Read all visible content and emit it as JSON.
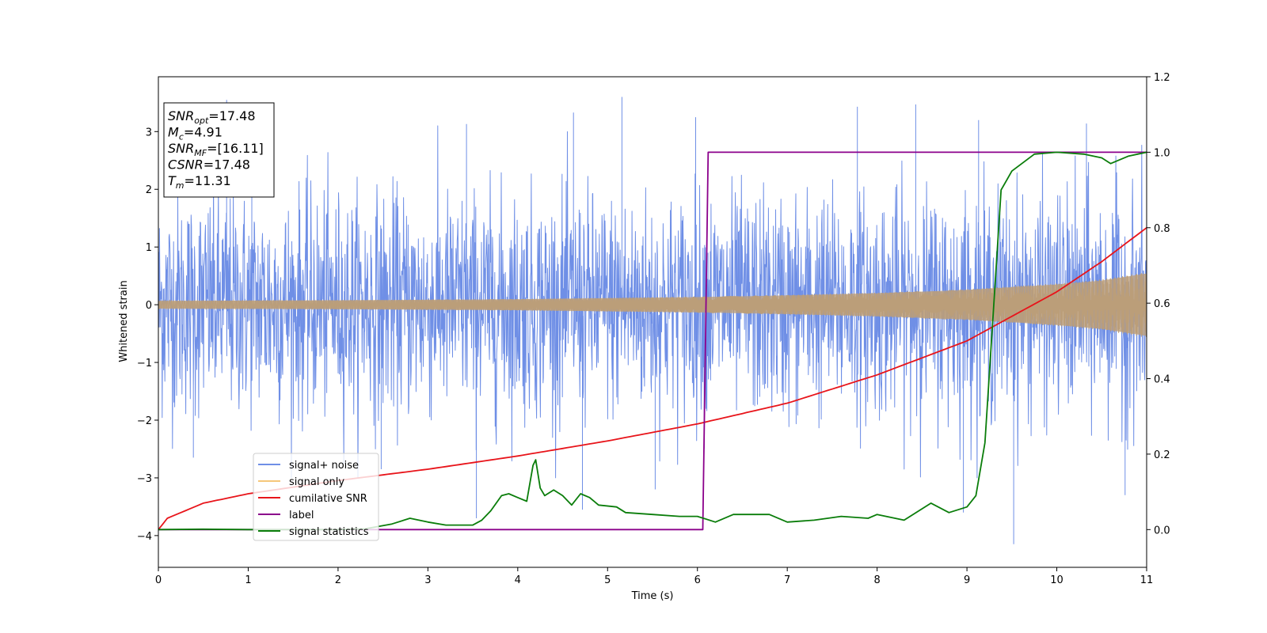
{
  "chart_data": {
    "type": "line",
    "title": "",
    "xlabel": "Time (s)",
    "ylabel": "Whitened strain",
    "xlim": [
      0,
      11
    ],
    "ylim": [
      -4.55,
      3.95
    ],
    "y2lim": [
      -0.1,
      1.2
    ],
    "x_ticks": [
      0,
      1,
      2,
      3,
      4,
      5,
      6,
      7,
      8,
      9,
      10,
      11
    ],
    "y_ticks": [
      -4,
      -3,
      -2,
      -1,
      0,
      1,
      2,
      3
    ],
    "y2_ticks": [
      0.0,
      0.2,
      0.4,
      0.6,
      0.8,
      1.0,
      1.2
    ],
    "grid": false,
    "legend_position": "lower-left",
    "colors": {
      "signal_noise": "#6f8fe6",
      "signal_only": "#f5c77a",
      "overlap": "#bb9e79",
      "cumulative_snr": "#e8141a",
      "label": "#8b008b",
      "signal_statistics": "#0a7d0a"
    },
    "series": [
      {
        "name": "signal+ noise",
        "axis": "left",
        "description_points": [
          [
            0,
            0.0
          ]
        ],
        "noise_std": 0.95,
        "upper_envelope_peaks": [
          [
            0.76,
            3.55
          ],
          [
            1.04,
            3.05
          ],
          [
            3.43,
            3.13
          ],
          [
            4.62,
            3.33
          ],
          [
            5.16,
            3.6
          ],
          [
            5.98,
            3.25
          ],
          [
            7.78,
            3.43
          ],
          [
            8.43,
            3.47
          ],
          [
            9.13,
            3.2
          ],
          [
            10.33,
            3.14
          ]
        ],
        "lower_envelope_peaks": [
          [
            0.39,
            -2.65
          ],
          [
            2.48,
            -2.85
          ],
          [
            3.54,
            -3.7
          ],
          [
            4.72,
            -3.55
          ],
          [
            5.53,
            -3.2
          ],
          [
            8.96,
            -3.6
          ],
          [
            9.52,
            -4.15
          ],
          [
            10.76,
            -3.3
          ]
        ]
      },
      {
        "name": "signal only",
        "axis": "left",
        "envelope": [
          [
            0,
            0.07
          ],
          [
            2,
            0.08
          ],
          [
            4,
            0.1
          ],
          [
            6,
            0.14
          ],
          [
            7,
            0.17
          ],
          [
            8,
            0.21
          ],
          [
            9,
            0.27
          ],
          [
            10,
            0.37
          ],
          [
            10.5,
            0.44
          ],
          [
            11,
            0.57
          ]
        ]
      },
      {
        "name": "cumilative SNR",
        "axis": "right",
        "points": [
          [
            0,
            0.0
          ],
          [
            0.1,
            0.03
          ],
          [
            0.3,
            0.05
          ],
          [
            0.5,
            0.07
          ],
          [
            1,
            0.095
          ],
          [
            2,
            0.13
          ],
          [
            3,
            0.16
          ],
          [
            4,
            0.195
          ],
          [
            5,
            0.235
          ],
          [
            6,
            0.28
          ],
          [
            7,
            0.335
          ],
          [
            8,
            0.41
          ],
          [
            9,
            0.5
          ],
          [
            10,
            0.63
          ],
          [
            10.5,
            0.71
          ],
          [
            11,
            0.8
          ]
        ]
      },
      {
        "name": "label",
        "axis": "right",
        "points": [
          [
            0,
            0.0
          ],
          [
            6.06,
            0.0
          ],
          [
            6.12,
            1.0
          ],
          [
            11,
            1.0
          ]
        ]
      },
      {
        "name": "signal statistics",
        "axis": "right",
        "points": [
          [
            0,
            0.0
          ],
          [
            0.5,
            0.001
          ],
          [
            1,
            0.0
          ],
          [
            1.5,
            0.0
          ],
          [
            2,
            0.0
          ],
          [
            2.3,
            0.002
          ],
          [
            2.6,
            0.015
          ],
          [
            2.8,
            0.03
          ],
          [
            3,
            0.02
          ],
          [
            3.2,
            0.012
          ],
          [
            3.5,
            0.012
          ],
          [
            3.6,
            0.025
          ],
          [
            3.7,
            0.05
          ],
          [
            3.82,
            0.09
          ],
          [
            3.9,
            0.095
          ],
          [
            4.0,
            0.085
          ],
          [
            4.1,
            0.075
          ],
          [
            4.17,
            0.17
          ],
          [
            4.2,
            0.185
          ],
          [
            4.25,
            0.11
          ],
          [
            4.3,
            0.09
          ],
          [
            4.4,
            0.105
          ],
          [
            4.5,
            0.09
          ],
          [
            4.6,
            0.065
          ],
          [
            4.7,
            0.095
          ],
          [
            4.8,
            0.085
          ],
          [
            4.9,
            0.065
          ],
          [
            5.1,
            0.06
          ],
          [
            5.2,
            0.045
          ],
          [
            5.5,
            0.04
          ],
          [
            5.8,
            0.035
          ],
          [
            6.0,
            0.035
          ],
          [
            6.2,
            0.02
          ],
          [
            6.4,
            0.04
          ],
          [
            6.8,
            0.04
          ],
          [
            7.0,
            0.02
          ],
          [
            7.3,
            0.025
          ],
          [
            7.6,
            0.035
          ],
          [
            7.9,
            0.03
          ],
          [
            8.0,
            0.04
          ],
          [
            8.3,
            0.025
          ],
          [
            8.6,
            0.07
          ],
          [
            8.8,
            0.045
          ],
          [
            9.0,
            0.06
          ],
          [
            9.1,
            0.09
          ],
          [
            9.2,
            0.23
          ],
          [
            9.3,
            0.6
          ],
          [
            9.38,
            0.9
          ],
          [
            9.5,
            0.95
          ],
          [
            9.75,
            0.995
          ],
          [
            10.0,
            1.0
          ],
          [
            10.3,
            0.995
          ],
          [
            10.5,
            0.985
          ],
          [
            10.6,
            0.97
          ],
          [
            10.8,
            0.99
          ],
          [
            11,
            1.0
          ]
        ]
      }
    ],
    "annotations": {
      "box_lines": [
        {
          "main": "SNR",
          "sub": "opt",
          "rest": "=17.48"
        },
        {
          "main": "M",
          "sub": "c",
          "rest": "=4.91"
        },
        {
          "main": "SNR",
          "sub": "MF",
          "rest": "=[16.11]"
        },
        {
          "main": "CSNR",
          "sub": "",
          "rest": "=17.48"
        },
        {
          "main": "T",
          "sub": "m",
          "rest": "=11.31"
        }
      ]
    }
  }
}
